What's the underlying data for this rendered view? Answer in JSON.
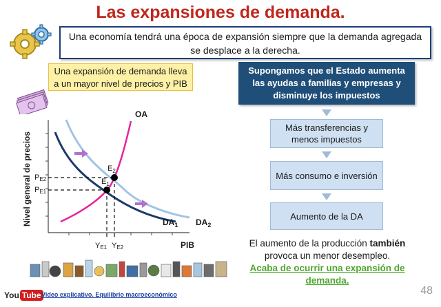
{
  "title": "Las expansiones de demanda.",
  "intro": "Una economía tendrá una época de expansión siempre que la demanda agregada se desplace a la derecha.",
  "yellow_note": "Una expansión de demanda lleva a un mayor nivel de precios y PIB",
  "flow": {
    "head": "Supongamos que el Estado aumenta las ayudas a familias y empresas y disminuye los impuestos",
    "steps": [
      "Más transferencias y menos impuestos",
      "Más consumo e inversión",
      "Aumento de la DA"
    ]
  },
  "conclusion": {
    "line1_a": "El aumento de la producción ",
    "line1_b": "también",
    "line2": "provoca un menor desempleo.",
    "green": "Acaba de ocurrir una expansión de demanda."
  },
  "chart_data": {
    "type": "line",
    "ylabel": "Nivel general de precios",
    "xlabel": "PIB",
    "curve_labels": {
      "oa": "OA",
      "da1": "DA",
      "da1_sub": "1",
      "da2": "DA",
      "da2_sub": "2"
    },
    "points": {
      "e1": "E",
      "e1_sub": "1",
      "e2": "E",
      "e2_sub": "2"
    },
    "y_ticks": {
      "pe2": "P",
      "pe2_sub": "E2",
      "pe1": "P",
      "pe1_sub": "E1"
    },
    "x_ticks": {
      "ye1": "Y",
      "ye1_sub": "E1",
      "ye2": "Y",
      "ye2_sub": "E2"
    },
    "colors": {
      "oa": "#e8229a",
      "da1": "#1a3a6b",
      "da2": "#9fc4e6",
      "arrow": "#b36fd0"
    }
  },
  "footer": {
    "yt_you": "You",
    "yt_tube": "Tube",
    "video_link": "Video explicativo. Equilibrio macroeconómico",
    "page_number": "48"
  }
}
